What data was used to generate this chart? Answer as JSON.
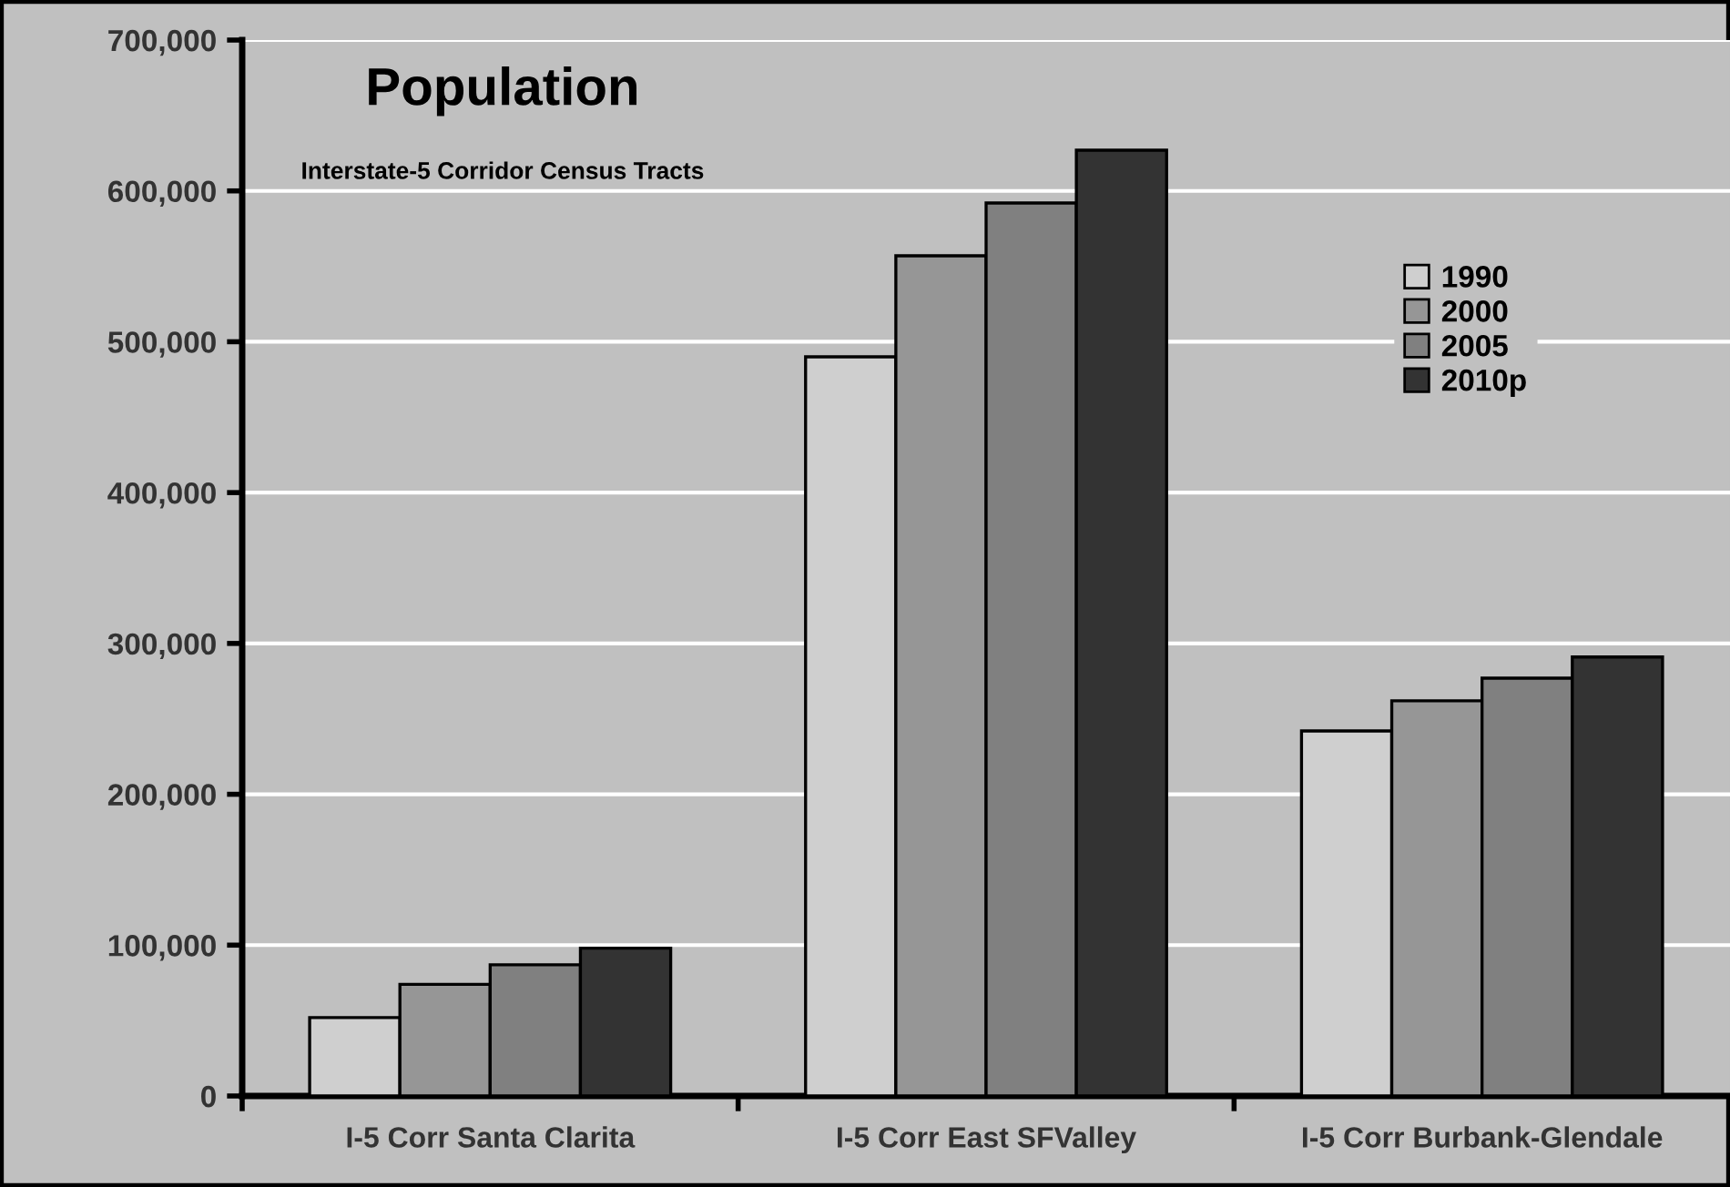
{
  "chart_data": {
    "type": "bar",
    "title": "Population",
    "subtitle": "Interstate-5 Corridor Census Tracts",
    "categories": [
      "I-5 Corr Santa Clarita",
      "I-5 Corr East SFValley",
      "I-5 Corr Burbank-Glendale"
    ],
    "series": [
      {
        "name": "1990",
        "color": "#cfcfcf",
        "values": [
          52000,
          490000,
          242000
        ]
      },
      {
        "name": "2000",
        "color": "#969696",
        "values": [
          74000,
          557000,
          262000
        ]
      },
      {
        "name": "2005",
        "color": "#808080",
        "values": [
          87000,
          592000,
          277000
        ]
      },
      {
        "name": "2010p",
        "color": "#333333",
        "values": [
          98000,
          627000,
          291000
        ]
      }
    ],
    "ylim": [
      0,
      700000
    ],
    "yticks": [
      0,
      {
        "value": 100000,
        "label": "100,000"
      },
      {
        "value": 200000,
        "label": "200,000"
      },
      {
        "value": 300000,
        "label": "300,000"
      },
      {
        "value": 400000,
        "label": "400,000"
      },
      {
        "value": 500000,
        "label": "500,000"
      },
      {
        "value": 600000,
        "label": "600,000"
      },
      {
        "value": 700000,
        "label": "700,000"
      }
    ],
    "grid": "y",
    "legend": "top right"
  }
}
